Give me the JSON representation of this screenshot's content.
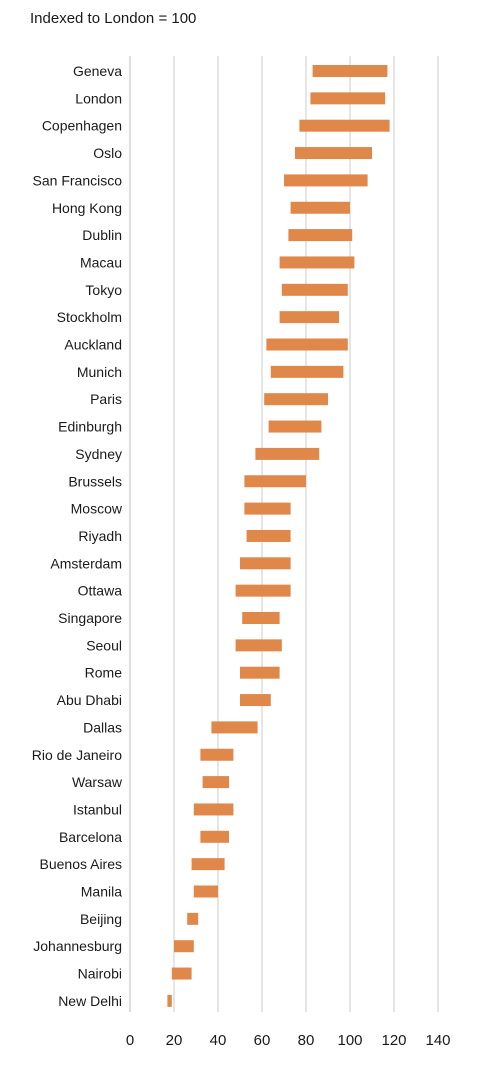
{
  "chart_data": {
    "type": "bar",
    "subtype": "floating-range-bar",
    "title": "Indexed to London = 100",
    "xlabel": "",
    "ylabel": "",
    "xlim": [
      0,
      140
    ],
    "xticks": [
      0,
      20,
      40,
      60,
      80,
      100,
      120,
      140
    ],
    "grid": "vertical",
    "legend": "none",
    "bar_color": "#e0874a",
    "categories": [
      "Geneva",
      "London",
      "Copenhagen",
      "Oslo",
      "San Francisco",
      "Hong Kong",
      "Dublin",
      "Macau",
      "Tokyo",
      "Stockholm",
      "Auckland",
      "Munich",
      "Paris",
      "Edinburgh",
      "Sydney",
      "Brussels",
      "Moscow",
      "Riyadh",
      "Amsterdam",
      "Ottawa",
      "Singapore",
      "Seoul",
      "Rome",
      "Abu Dhabi",
      "Dallas",
      "Rio de Janeiro",
      "Warsaw",
      "Istanbul",
      "Barcelona",
      "Buenos Aires",
      "Manila",
      "Beijing",
      "Johannesburg",
      "Nairobi",
      "New Delhi"
    ],
    "ranges": [
      [
        83,
        117
      ],
      [
        82,
        116
      ],
      [
        77,
        118
      ],
      [
        75,
        110
      ],
      [
        70,
        108
      ],
      [
        73,
        100
      ],
      [
        72,
        101
      ],
      [
        68,
        102
      ],
      [
        69,
        99
      ],
      [
        68,
        95
      ],
      [
        62,
        99
      ],
      [
        64,
        97
      ],
      [
        61,
        90
      ],
      [
        63,
        87
      ],
      [
        57,
        86
      ],
      [
        52,
        80
      ],
      [
        52,
        73
      ],
      [
        53,
        73
      ],
      [
        50,
        73
      ],
      [
        48,
        73
      ],
      [
        51,
        68
      ],
      [
        48,
        69
      ],
      [
        50,
        68
      ],
      [
        50,
        64
      ],
      [
        37,
        58
      ],
      [
        32,
        47
      ],
      [
        33,
        45
      ],
      [
        29,
        47
      ],
      [
        32,
        45
      ],
      [
        28,
        43
      ],
      [
        29,
        40
      ],
      [
        26,
        31
      ],
      [
        20,
        29
      ],
      [
        19,
        28
      ],
      [
        17,
        19
      ]
    ]
  }
}
